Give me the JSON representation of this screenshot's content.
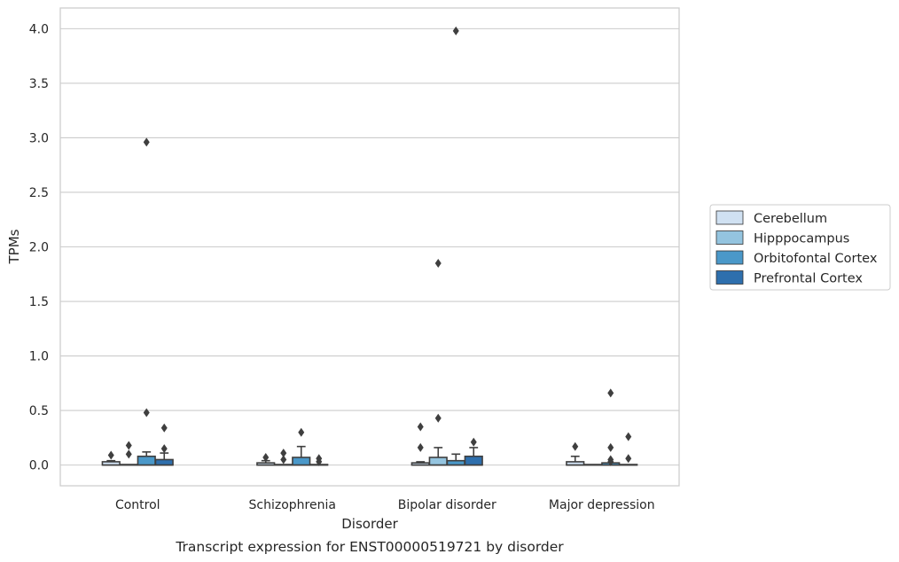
{
  "chart_data": {
    "type": "box",
    "xlabel": "Disorder",
    "ylabel": "TPMs",
    "caption": "Transcript expression for ENST00000519721 by disorder",
    "ylim": [
      -0.19,
      4.19
    ],
    "yticks": [
      "0.0",
      "0.5",
      "1.0",
      "1.5",
      "2.0",
      "2.5",
      "3.0",
      "3.5",
      "4.0"
    ],
    "grid": "horizontal",
    "legend_position": "right",
    "categories": [
      "Control",
      "Schizophrenia",
      "Bipolar disorder",
      "Major depression"
    ],
    "series": [
      {
        "name": "Cerebellum",
        "color": "#d0e1f2",
        "boxes": [
          {
            "q1": 0.0,
            "median": 0.0,
            "q3": 0.03,
            "wlow": 0.0,
            "whigh": 0.04,
            "outliers": [
              0.09
            ]
          },
          {
            "q1": 0.0,
            "median": 0.0,
            "q3": 0.02,
            "wlow": 0.0,
            "whigh": 0.04,
            "outliers": [
              0.07
            ]
          },
          {
            "q1": 0.0,
            "median": 0.0,
            "q3": 0.02,
            "wlow": 0.0,
            "whigh": 0.03,
            "outliers": [
              0.35,
              0.16
            ]
          },
          {
            "q1": 0.0,
            "median": 0.0,
            "q3": 0.03,
            "wlow": 0.0,
            "whigh": 0.08,
            "outliers": [
              0.17
            ]
          }
        ]
      },
      {
        "name": "Hipppocampus",
        "color": "#94c4df",
        "boxes": [
          {
            "q1": 0.0,
            "median": 0.0,
            "q3": 0.0,
            "wlow": 0.0,
            "whigh": 0.0,
            "outliers": [
              0.18,
              0.1
            ]
          },
          {
            "q1": 0.0,
            "median": 0.0,
            "q3": 0.0,
            "wlow": 0.0,
            "whigh": 0.0,
            "outliers": [
              0.11,
              0.05
            ]
          },
          {
            "q1": 0.0,
            "median": 0.0,
            "q3": 0.07,
            "wlow": 0.0,
            "whigh": 0.16,
            "outliers": [
              1.85,
              0.43
            ]
          },
          {
            "q1": 0.0,
            "median": 0.0,
            "q3": 0.0,
            "wlow": 0.0,
            "whigh": 0.0,
            "outliers": []
          }
        ]
      },
      {
        "name": "Orbitofontal Cortex",
        "color": "#4a98c9",
        "boxes": [
          {
            "q1": 0.0,
            "median": 0.0,
            "q3": 0.08,
            "wlow": 0.0,
            "whigh": 0.12,
            "outliers": [
              2.96,
              0.48
            ]
          },
          {
            "q1": 0.0,
            "median": 0.0,
            "q3": 0.07,
            "wlow": 0.0,
            "whigh": 0.17,
            "outliers": [
              0.3
            ]
          },
          {
            "q1": 0.0,
            "median": 0.0,
            "q3": 0.04,
            "wlow": 0.0,
            "whigh": 0.1,
            "outliers": [
              3.98
            ]
          },
          {
            "q1": 0.0,
            "median": 0.0,
            "q3": 0.02,
            "wlow": 0.0,
            "whigh": 0.02,
            "outliers": [
              0.66,
              0.16,
              0.05,
              0.03
            ]
          }
        ]
      },
      {
        "name": "Prefrontal Cortex",
        "color": "#2e6fad",
        "boxes": [
          {
            "q1": 0.0,
            "median": 0.0,
            "q3": 0.05,
            "wlow": 0.0,
            "whigh": 0.11,
            "outliers": [
              0.34,
              0.15
            ]
          },
          {
            "q1": 0.0,
            "median": 0.0,
            "q3": 0.0,
            "wlow": 0.0,
            "whigh": 0.0,
            "outliers": [
              0.06,
              0.03
            ]
          },
          {
            "q1": 0.0,
            "median": 0.0,
            "q3": 0.08,
            "wlow": 0.0,
            "whigh": 0.16,
            "outliers": [
              0.21
            ]
          },
          {
            "q1": 0.0,
            "median": 0.0,
            "q3": 0.0,
            "wlow": 0.0,
            "whigh": 0.0,
            "outliers": [
              0.26,
              0.06
            ]
          }
        ]
      }
    ]
  }
}
